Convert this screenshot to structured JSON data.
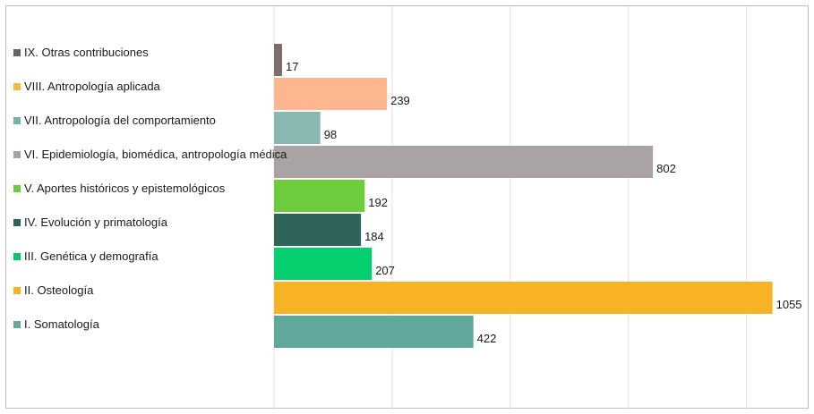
{
  "chart_data": {
    "type": "bar",
    "orientation": "horizontal",
    "grid": true,
    "legend_position": "left",
    "xlim": [
      0,
      1100
    ],
    "categories": [
      "IX. Otras contribuciones",
      "VIII. Antropología aplicada",
      "VII. Antropología del comportamiento",
      "VI. Epidemiología, biomédica, antropología médica",
      "V. Aportes históricos y epistemológicos",
      "IV. Evolución y primatología",
      "III. Genética y demografía",
      "II. Osteología",
      "I. Somatología"
    ],
    "values": [
      17,
      239,
      98,
      802,
      192,
      184,
      207,
      1055,
      422
    ],
    "legend_colors": [
      "#6d6361",
      "#f7bb3a",
      "#74b2aa",
      "#a9a3a3",
      "#6ccc3c",
      "#2c6459",
      "#00cc6a",
      "#f8b324",
      "#62a89c"
    ],
    "bar_colors": [
      "#7b6e6c",
      "#fdb68d",
      "#87b9b2",
      "#aaa3a3",
      "#6ccc3c",
      "#2f645b",
      "#05cf6f",
      "#f8b324",
      "#61a89c"
    ]
  }
}
